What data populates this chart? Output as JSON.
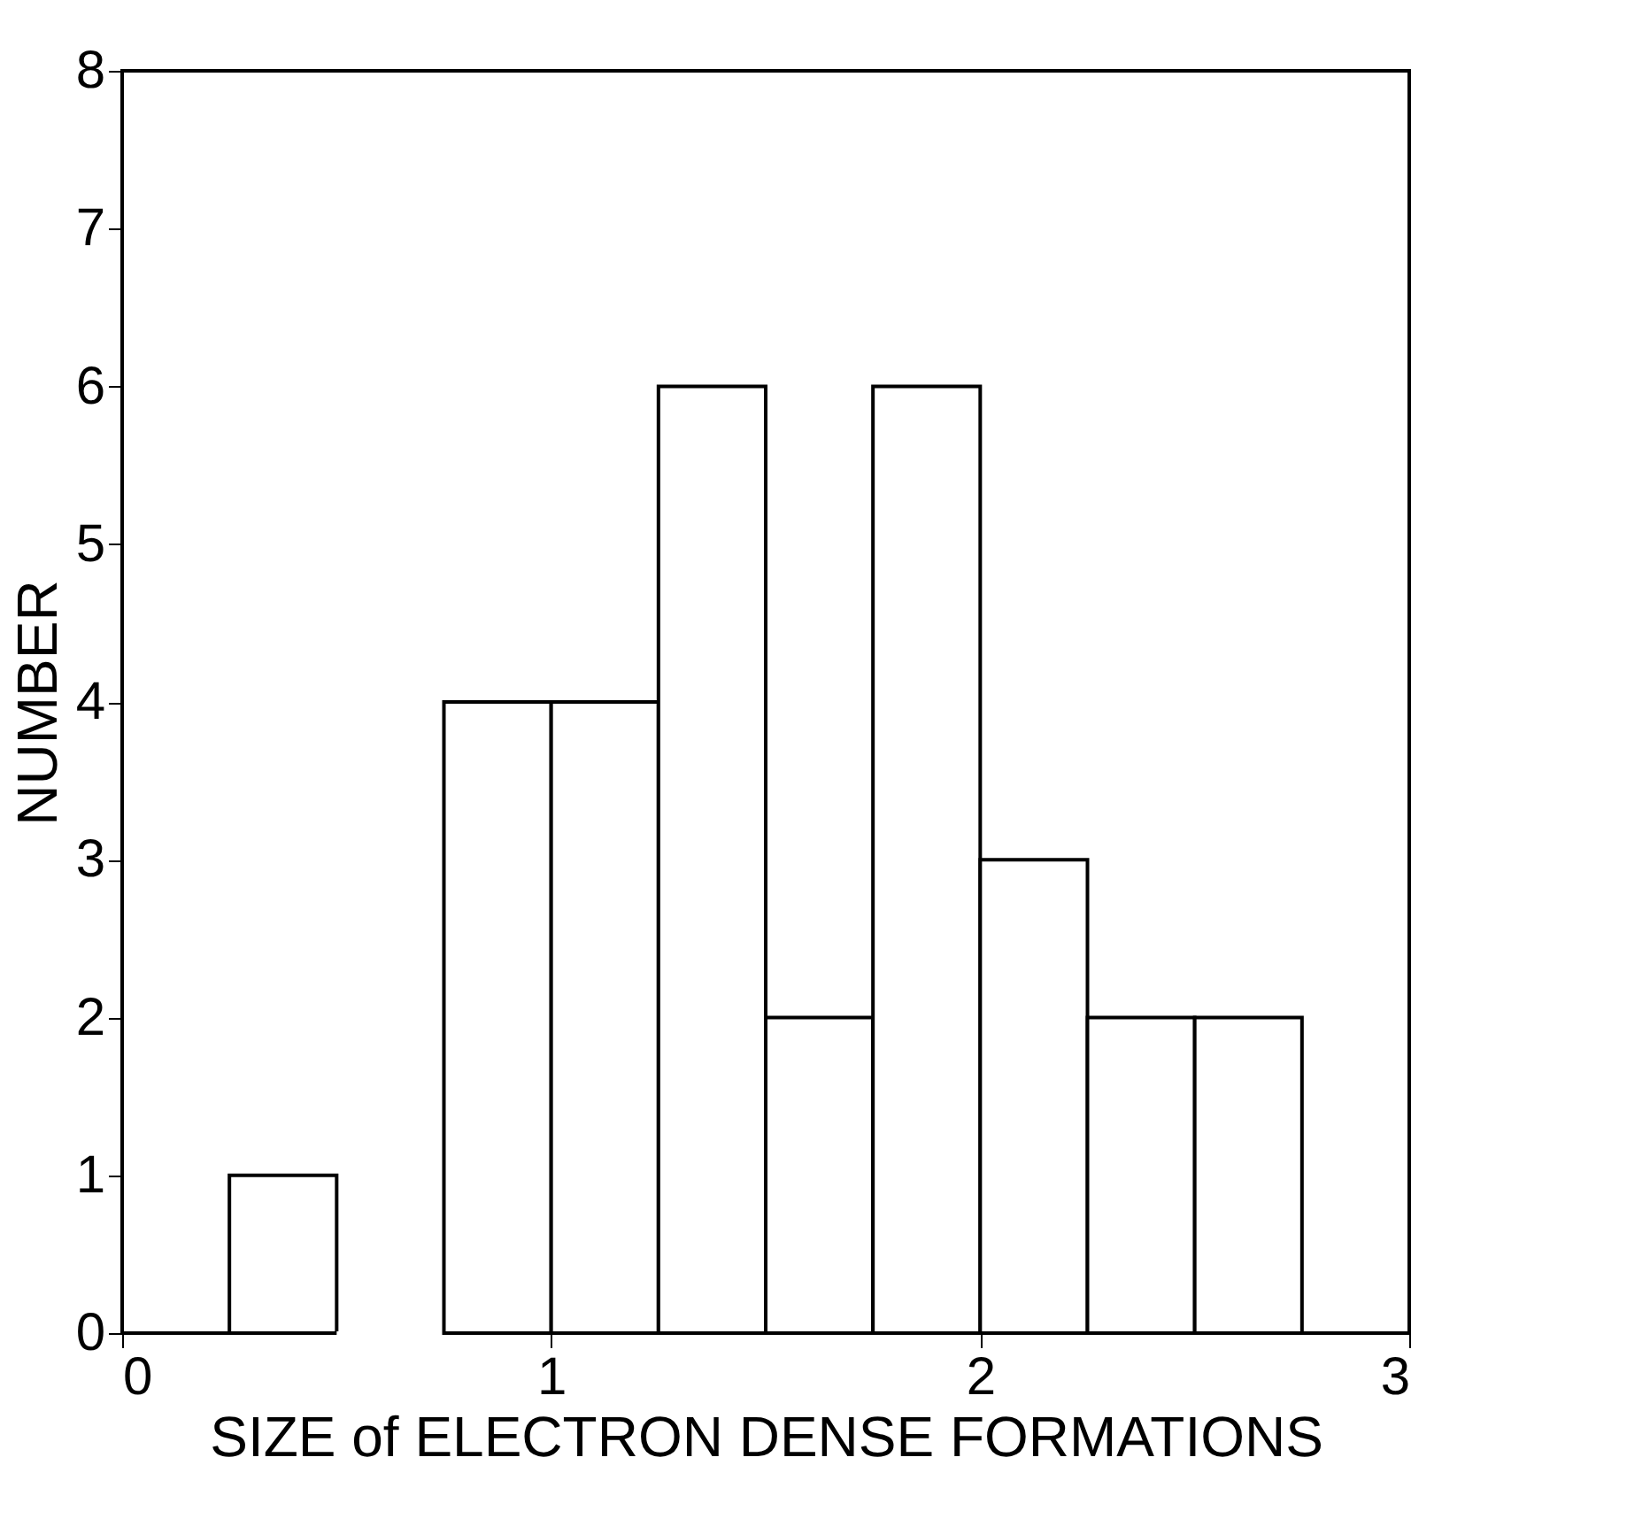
{
  "chart_data": {
    "type": "histogram",
    "xlabel": "SIZE of ELECTRON DENSE FORMATIONS",
    "ylabel": "NUMBER",
    "bins": [
      0.25,
      0.5,
      0.75,
      1.0,
      1.25,
      1.5,
      1.75,
      2.0,
      2.25,
      2.5,
      2.75
    ],
    "values": [
      1,
      0,
      4,
      4,
      6,
      2,
      6,
      3,
      2,
      2
    ],
    "color": "#ffffff",
    "xlim": [
      0,
      3
    ],
    "xticks": [
      0,
      1,
      2,
      3
    ],
    "ylim": [
      0,
      8
    ],
    "yticks": [
      0,
      1,
      2,
      3,
      4,
      5,
      6,
      7,
      8
    ],
    "grid": false
  }
}
